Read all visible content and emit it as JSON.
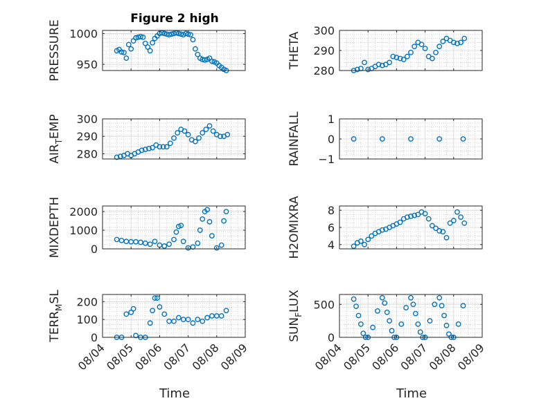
{
  "figure_title": "Figure 2 high",
  "xlabel": "Time",
  "marker_color": "#0072BD",
  "x_ticks": [
    {
      "label": "08/04",
      "day": 4
    },
    {
      "label": "08/05",
      "day": 5
    },
    {
      "label": "08/06",
      "day": 6
    },
    {
      "label": "08/07",
      "day": 7
    },
    {
      "label": "08/08",
      "day": 8
    },
    {
      "label": "08/09",
      "day": 9
    }
  ],
  "chart_data": [
    {
      "type": "scatter",
      "ylabel": "PRESSURE",
      "ylim": [
        940,
        1005
      ],
      "yticks": [
        950,
        1000
      ],
      "grid": true,
      "x": [
        "08/04 12:00",
        "08/04 14:00",
        "08/04 16:00",
        "08/04 18:00",
        "08/04 20:00",
        "08/04 22:00",
        "08/05 00:00",
        "08/05 02:00",
        "08/05 04:00",
        "08/05 06:00",
        "08/05 08:00",
        "08/05 10:00",
        "08/05 12:00",
        "08/05 14:00",
        "08/05 16:00",
        "08/05 18:00",
        "08/05 20:00",
        "08/05 22:00",
        "08/06 00:00",
        "08/06 02:00",
        "08/06 04:00",
        "08/06 06:00",
        "08/06 08:00",
        "08/06 10:00",
        "08/06 12:00",
        "08/06 14:00",
        "08/06 16:00",
        "08/06 18:00",
        "08/06 20:00",
        "08/06 22:00",
        "08/07 00:00",
        "08/07 02:00",
        "08/07 04:00",
        "08/07 06:00",
        "08/07 08:00",
        "08/07 10:00",
        "08/07 12:00",
        "08/07 14:00",
        "08/07 16:00",
        "08/07 18:00",
        "08/07 20:00",
        "08/07 22:00",
        "08/08 00:00",
        "08/08 02:00",
        "08/08 04:00",
        "08/08 06:00",
        "08/08 08:00"
      ],
      "y": [
        972,
        974,
        970,
        969,
        960,
        982,
        975,
        988,
        993,
        994,
        995,
        994,
        984,
        978,
        972,
        985,
        992,
        996,
        1000,
        1001,
        1000,
        999,
        998,
        999,
        1000,
        1001,
        1000,
        999,
        998,
        1000,
        999,
        998,
        990,
        975,
        966,
        960,
        958,
        957,
        958,
        960,
        955,
        954,
        952,
        948,
        945,
        942,
        940
      ]
    },
    {
      "type": "scatter",
      "ylabel": "THETA",
      "ylim": [
        280,
        300
      ],
      "yticks": [
        280,
        290,
        300
      ],
      "grid": true,
      "x": [
        "08/04 12:00",
        "08/04 15:00",
        "08/04 18:00",
        "08/04 21:00",
        "08/05 00:00",
        "08/05 03:00",
        "08/05 06:00",
        "08/05 09:00",
        "08/05 12:00",
        "08/05 15:00",
        "08/05 18:00",
        "08/05 21:00",
        "08/06 00:00",
        "08/06 03:00",
        "08/06 06:00",
        "08/06 09:00",
        "08/06 12:00",
        "08/06 15:00",
        "08/06 18:00",
        "08/06 21:00",
        "08/07 00:00",
        "08/07 03:00",
        "08/07 06:00",
        "08/07 09:00",
        "08/07 12:00",
        "08/07 15:00",
        "08/07 18:00",
        "08/07 21:00",
        "08/08 00:00",
        "08/08 03:00",
        "08/08 06:00",
        "08/08 09:00"
      ],
      "y": [
        280,
        280.5,
        281,
        284,
        280.5,
        281,
        282,
        283,
        282.5,
        283,
        284,
        287,
        286.5,
        286,
        285.5,
        287,
        289,
        292,
        294,
        293,
        291,
        287,
        286,
        289,
        292,
        294.5,
        296,
        295,
        294,
        293.5,
        294,
        296
      ]
    },
    {
      "type": "scatter",
      "ylabel": "AIR_TEMP",
      "ylim": [
        277,
        300
      ],
      "yticks": [
        280,
        290,
        300
      ],
      "grid": true,
      "x": [
        "08/04 12:00",
        "08/04 15:00",
        "08/04 18:00",
        "08/04 21:00",
        "08/05 00:00",
        "08/05 03:00",
        "08/05 06:00",
        "08/05 09:00",
        "08/05 12:00",
        "08/05 15:00",
        "08/05 18:00",
        "08/05 21:00",
        "08/06 00:00",
        "08/06 03:00",
        "08/06 06:00",
        "08/06 09:00",
        "08/06 12:00",
        "08/06 15:00",
        "08/06 18:00",
        "08/06 21:00",
        "08/07 00:00",
        "08/07 03:00",
        "08/07 06:00",
        "08/07 09:00",
        "08/07 12:00",
        "08/07 15:00",
        "08/07 18:00",
        "08/07 21:00",
        "08/08 00:00",
        "08/08 03:00",
        "08/08 06:00",
        "08/08 09:00"
      ],
      "y": [
        278,
        278.5,
        279,
        280,
        279,
        280,
        281,
        282,
        282.5,
        283,
        283.5,
        285,
        284,
        284,
        284,
        286,
        289,
        292,
        294,
        293,
        291,
        288,
        287,
        289,
        292,
        294,
        296,
        293,
        291,
        290,
        290,
        291
      ]
    },
    {
      "type": "scatter",
      "ylabel": "RAINFALL",
      "ylim": [
        -1,
        1
      ],
      "yticks": [
        -1,
        0,
        1
      ],
      "grid": true,
      "x": [
        "08/04 12:00",
        "08/05 12:00",
        "08/06 12:00",
        "08/07 12:00",
        "08/08 08:00"
      ],
      "y": [
        0,
        0,
        0,
        0,
        0
      ]
    },
    {
      "type": "scatter",
      "ylabel": "MIXDEPTH",
      "ylim": [
        0,
        2300
      ],
      "yticks": [
        0,
        1000,
        2000
      ],
      "grid": true,
      "x": [
        "08/04 12:00",
        "08/04 16:00",
        "08/04 20:00",
        "08/05 00:00",
        "08/05 04:00",
        "08/05 08:00",
        "08/05 12:00",
        "08/05 16:00",
        "08/05 20:00",
        "08/06 00:00",
        "08/06 04:00",
        "08/06 08:00",
        "08/06 12:00",
        "08/06 14:00",
        "08/06 16:00",
        "08/06 18:00",
        "08/06 20:00",
        "08/07 00:00",
        "08/07 04:00",
        "08/07 08:00",
        "08/07 10:00",
        "08/07 12:00",
        "08/07 14:00",
        "08/07 16:00",
        "08/07 18:00",
        "08/07 20:00",
        "08/08 00:00",
        "08/08 04:00",
        "08/08 06:00",
        "08/08 08:00"
      ],
      "y": [
        500,
        450,
        400,
        380,
        380,
        350,
        300,
        250,
        400,
        200,
        150,
        250,
        500,
        900,
        1200,
        1250,
        400,
        50,
        100,
        300,
        1000,
        1600,
        2000,
        2100,
        1450,
        700,
        50,
        200,
        1500,
        2000
      ]
    },
    {
      "type": "scatter",
      "ylabel": "H2OMIXRA",
      "ylim": [
        3.5,
        8.5
      ],
      "yticks": [
        4,
        6,
        8
      ],
      "grid": true,
      "x": [
        "08/04 12:00",
        "08/04 15:00",
        "08/04 18:00",
        "08/04 21:00",
        "08/05 00:00",
        "08/05 03:00",
        "08/05 06:00",
        "08/05 09:00",
        "08/05 12:00",
        "08/05 15:00",
        "08/05 18:00",
        "08/05 21:00",
        "08/06 00:00",
        "08/06 03:00",
        "08/06 06:00",
        "08/06 09:00",
        "08/06 12:00",
        "08/06 15:00",
        "08/06 18:00",
        "08/06 21:00",
        "08/07 00:00",
        "08/07 03:00",
        "08/07 06:00",
        "08/07 09:00",
        "08/07 12:00",
        "08/07 15:00",
        "08/07 18:00",
        "08/07 21:00",
        "08/08 00:00",
        "08/08 03:00",
        "08/08 06:00",
        "08/08 09:00"
      ],
      "y": [
        3.8,
        4.2,
        4.4,
        4,
        4.6,
        5,
        5.3,
        5.5,
        5.7,
        5.8,
        6,
        6.2,
        6.4,
        6.6,
        7,
        7.2,
        7.3,
        7.4,
        7.5,
        7.8,
        7.6,
        7,
        6.2,
        5.9,
        5.6,
        5.5,
        4.8,
        6.5,
        6.8,
        7.8,
        7.2,
        6.5
      ]
    },
    {
      "type": "scatter",
      "ylabel": "TERR_MSL",
      "ylim": [
        0,
        240
      ],
      "yticks": [
        0,
        100,
        200
      ],
      "grid": true,
      "x": [
        "08/04 12:00",
        "08/04 16:00",
        "08/04 20:00",
        "08/05 00:00",
        "08/05 02:00",
        "08/05 04:00",
        "08/05 08:00",
        "08/05 12:00",
        "08/05 16:00",
        "08/05 18:00",
        "08/05 20:00",
        "08/05 22:00",
        "08/06 00:00",
        "08/06 04:00",
        "08/06 08:00",
        "08/06 12:00",
        "08/06 16:00",
        "08/06 20:00",
        "08/07 00:00",
        "08/07 04:00",
        "08/07 08:00",
        "08/07 12:00",
        "08/07 16:00",
        "08/07 20:00",
        "08/08 00:00",
        "08/08 04:00",
        "08/08 08:00"
      ],
      "y": [
        0,
        0,
        130,
        140,
        160,
        10,
        0,
        0,
        80,
        150,
        220,
        220,
        170,
        130,
        90,
        90,
        110,
        100,
        100,
        80,
        100,
        90,
        110,
        120,
        120,
        120,
        150
      ]
    },
    {
      "type": "scatter",
      "ylabel": "SUN_FLUX",
      "ylim": [
        0,
        650
      ],
      "yticks": [
        0,
        500
      ],
      "grid": true,
      "x": [
        "08/04 12:00",
        "08/04 14:00",
        "08/04 16:00",
        "08/04 18:00",
        "08/04 20:00",
        "08/04 22:00",
        "08/05 00:00",
        "08/05 04:00",
        "08/05 08:00",
        "08/05 12:00",
        "08/05 14:00",
        "08/05 16:00",
        "08/05 18:00",
        "08/05 20:00",
        "08/05 22:00",
        "08/06 00:00",
        "08/06 04:00",
        "08/06 08:00",
        "08/06 12:00",
        "08/06 14:00",
        "08/06 16:00",
        "08/06 18:00",
        "08/06 20:00",
        "08/06 22:00",
        "08/07 00:00",
        "08/07 04:00",
        "08/07 08:00",
        "08/07 12:00",
        "08/07 14:00",
        "08/07 16:00",
        "08/07 18:00",
        "08/07 20:00",
        "08/07 22:00",
        "08/08 00:00",
        "08/08 04:00",
        "08/08 08:00"
      ],
      "y": [
        580,
        470,
        330,
        200,
        60,
        0,
        0,
        150,
        400,
        600,
        520,
        380,
        250,
        100,
        0,
        0,
        200,
        450,
        600,
        500,
        360,
        200,
        80,
        0,
        0,
        250,
        500,
        600,
        480,
        330,
        180,
        50,
        0,
        0,
        200,
        480
      ]
    }
  ]
}
